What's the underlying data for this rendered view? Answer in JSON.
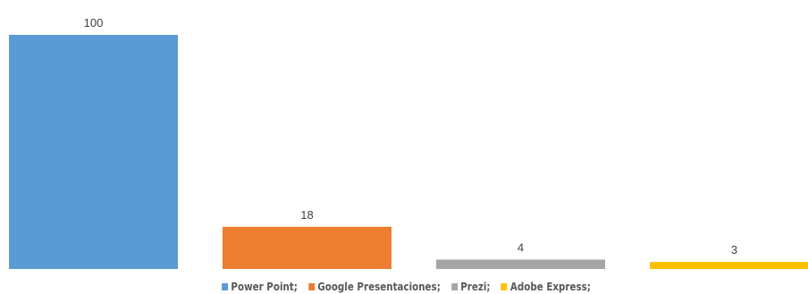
{
  "chart_data": {
    "type": "bar",
    "categories": [
      "Power Point;",
      "Google Presentaciones;",
      "Prezi;",
      "Adobe Express;"
    ],
    "values": [
      100,
      18,
      4,
      3
    ],
    "colors": [
      "#5B9BD5",
      "#ED7D31",
      "#A5A5A5",
      "#FFC000"
    ],
    "data_labels": [
      "100",
      "18",
      "4",
      "3"
    ],
    "ylim": [
      0,
      100
    ],
    "grid": false,
    "legend": "bottom",
    "title": "",
    "xlabel": "",
    "ylabel": ""
  }
}
